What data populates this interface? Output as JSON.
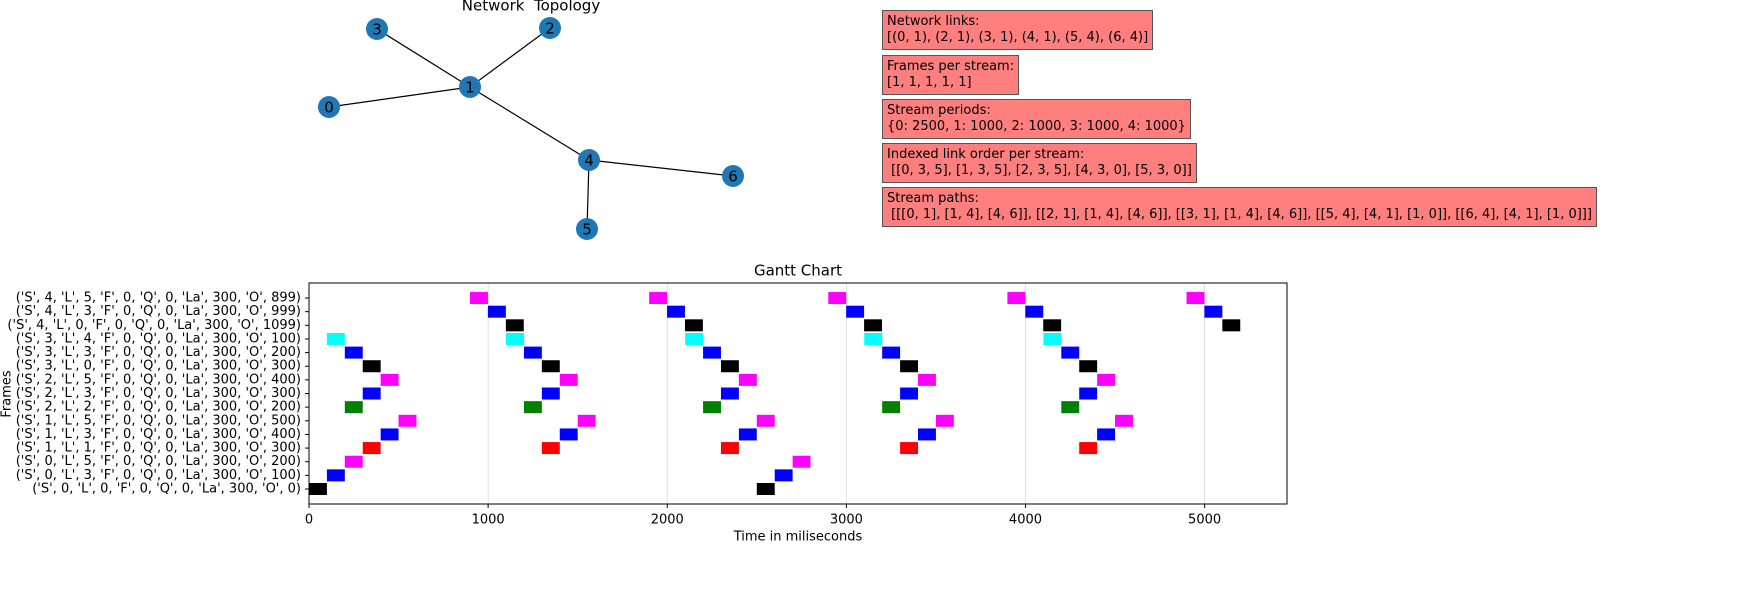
{
  "network": {
    "title": "Network  Topology",
    "nodes": [
      "0",
      "1",
      "2",
      "3",
      "4",
      "5",
      "6"
    ],
    "edges": [
      [
        0,
        1
      ],
      [
        2,
        1
      ],
      [
        3,
        1
      ],
      [
        4,
        1
      ],
      [
        5,
        4
      ],
      [
        6,
        4
      ]
    ],
    "node_color": "#1f77b4"
  },
  "info_boxes": [
    {
      "title": "Network links:",
      "text": "[(0, 1), (2, 1), (3, 1), (4, 1), (5, 4), (6, 4)]"
    },
    {
      "title": "Frames per stream:",
      "text": "[1, 1, 1, 1, 1]"
    },
    {
      "title": "Stream periods:",
      "text": "{0: 2500, 1: 1000, 2: 1000, 3: 1000, 4: 1000}"
    },
    {
      "title": "Indexed link order per stream:",
      "text": " [[0, 3, 5], [1, 3, 5], [2, 3, 5], [4, 3, 0], [5, 3, 0]]"
    },
    {
      "title": "Stream paths:",
      "text": " [[[0, 1], [1, 4], [4, 6]], [[2, 1], [1, 4], [4, 6]], [[3, 1], [1, 4], [4, 6]], [[5, 4], [4, 1], [1, 0]], [[6, 4], [4, 1], [1, 0]]]"
    }
  ],
  "chart_data": {
    "type": "gantt",
    "title": "Gantt Chart",
    "xlabel": "Time in miliseconds",
    "ylabel": "Frames",
    "categories": [
      "('S', 0, 'L', 0, 'F', 0, 'Q', 0, 'La', 300, 'O', 0)",
      "('S', 0, 'L', 3, 'F', 0, 'Q', 0, 'La', 300, 'O', 100)",
      "('S', 0, 'L', 5, 'F', 0, 'Q', 0, 'La', 300, 'O', 200)",
      "('S', 1, 'L', 1, 'F', 0, 'Q', 0, 'La', 300, 'O', 300)",
      "('S', 1, 'L', 3, 'F', 0, 'Q', 0, 'La', 300, 'O', 400)",
      "('S', 1, 'L', 5, 'F', 0, 'Q', 0, 'La', 300, 'O', 500)",
      "('S', 2, 'L', 2, 'F', 0, 'Q', 0, 'La', 300, 'O', 200)",
      "('S', 2, 'L', 3, 'F', 0, 'Q', 0, 'La', 300, 'O', 300)",
      "('S', 2, 'L', 5, 'F', 0, 'Q', 0, 'La', 300, 'O', 400)",
      "('S', 3, 'L', 0, 'F', 0, 'Q', 0, 'La', 300, 'O', 300)",
      "('S', 3, 'L', 3, 'F', 0, 'Q', 0, 'La', 300, 'O', 200)",
      "('S', 3, 'L', 4, 'F', 0, 'Q', 0, 'La', 300, 'O', 100)",
      "('S', 4, 'L', 0, 'F', 0, 'Q', 0, 'La', 300, 'O', 1099)",
      "('S', 4, 'L', 3, 'F', 0, 'Q', 0, 'La', 300, 'O', 999)",
      "('S', 4, 'L', 5, 'F', 0, 'Q', 0, 'La', 300, 'O', 899)"
    ],
    "bars": [
      {
        "color": "#000000",
        "starts": [
          0,
          2500
        ],
        "duration": 100
      },
      {
        "color": "#0000ff",
        "starts": [
          100,
          2600
        ],
        "duration": 100
      },
      {
        "color": "#ff00ff",
        "starts": [
          200,
          2700
        ],
        "duration": 100
      },
      {
        "color": "#ff0000",
        "starts": [
          300,
          1300,
          2300,
          3300,
          4300
        ],
        "duration": 100
      },
      {
        "color": "#0000ff",
        "starts": [
          400,
          1400,
          2400,
          3400,
          4400
        ],
        "duration": 100
      },
      {
        "color": "#ff00ff",
        "starts": [
          500,
          1500,
          2500,
          3500,
          4500
        ],
        "duration": 100
      },
      {
        "color": "#008000",
        "starts": [
          200,
          1200,
          2200,
          3200,
          4200
        ],
        "duration": 100
      },
      {
        "color": "#0000ff",
        "starts": [
          300,
          1300,
          2300,
          3300,
          4300
        ],
        "duration": 100
      },
      {
        "color": "#ff00ff",
        "starts": [
          400,
          1400,
          2400,
          3400,
          4400
        ],
        "duration": 100
      },
      {
        "color": "#000000",
        "starts": [
          300,
          1300,
          2300,
          3300,
          4300
        ],
        "duration": 100
      },
      {
        "color": "#0000ff",
        "starts": [
          200,
          1200,
          2200,
          3200,
          4200
        ],
        "duration": 100
      },
      {
        "color": "#00ffff",
        "starts": [
          100,
          1100,
          2100,
          3100,
          4100
        ],
        "duration": 100
      },
      {
        "color": "#000000",
        "starts": [
          1099,
          2099,
          3099,
          4099,
          5099
        ],
        "duration": 100
      },
      {
        "color": "#0000ff",
        "starts": [
          999,
          1999,
          2999,
          3999,
          4999
        ],
        "duration": 100
      },
      {
        "color": "#ff00ff",
        "starts": [
          899,
          1899,
          2899,
          3899,
          4899
        ],
        "duration": 100
      }
    ],
    "xlim": [
      0,
      5460
    ],
    "xticks": [
      0,
      1000,
      2000,
      3000,
      4000,
      5000
    ],
    "grid": true
  }
}
